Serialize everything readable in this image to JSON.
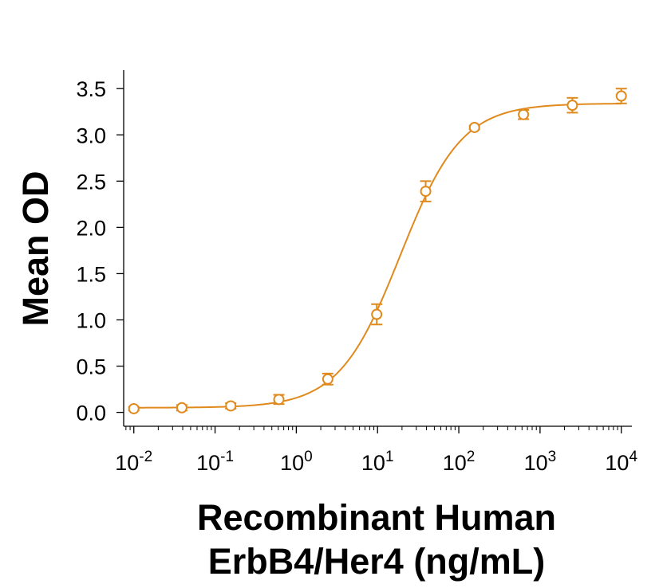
{
  "chart_data": {
    "type": "scatter",
    "title": "",
    "xlabel_lines": [
      "Recombinant Human",
      "ErbB4/Her4 (ng/mL)"
    ],
    "ylabel": "Mean OD",
    "x_scale": "log10",
    "xlim": [
      0.0075,
      13500
    ],
    "ylim": [
      -0.15,
      3.7
    ],
    "x_ticks": [
      {
        "base": "10",
        "exp": "-2",
        "value": 0.01
      },
      {
        "base": "10",
        "exp": "-1",
        "value": 0.1
      },
      {
        "base": "10",
        "exp": "0",
        "value": 1
      },
      {
        "base": "10",
        "exp": "1",
        "value": 10
      },
      {
        "base": "10",
        "exp": "2",
        "value": 100
      },
      {
        "base": "10",
        "exp": "3",
        "value": 1000
      },
      {
        "base": "10",
        "exp": "4",
        "value": 10000
      }
    ],
    "y_ticks": [
      "0.0",
      "0.5",
      "1.0",
      "1.5",
      "2.0",
      "2.5",
      "3.0",
      "3.5"
    ],
    "color": "#E08A1E",
    "series": [
      {
        "points": [
          {
            "x": 0.01,
            "y": 0.04,
            "err": 0.02
          },
          {
            "x": 0.039,
            "y": 0.05,
            "err": 0.03
          },
          {
            "x": 0.156,
            "y": 0.07,
            "err": 0.03
          },
          {
            "x": 0.61,
            "y": 0.14,
            "err": 0.05
          },
          {
            "x": 2.44,
            "y": 0.36,
            "err": 0.06
          },
          {
            "x": 9.77,
            "y": 1.06,
            "err": 0.11
          },
          {
            "x": 39.1,
            "y": 2.39,
            "err": 0.11
          },
          {
            "x": 156,
            "y": 3.08,
            "err": 0.02
          },
          {
            "x": 625,
            "y": 3.22,
            "err": 0.05
          },
          {
            "x": 2500,
            "y": 3.32,
            "err": 0.08
          },
          {
            "x": 10000,
            "y": 3.42,
            "err": 0.08
          }
        ],
        "fit": {
          "model": "4PL",
          "bottom": 0.05,
          "top": 3.34,
          "ec50": 19.0,
          "hill": 1.15
        }
      }
    ]
  }
}
